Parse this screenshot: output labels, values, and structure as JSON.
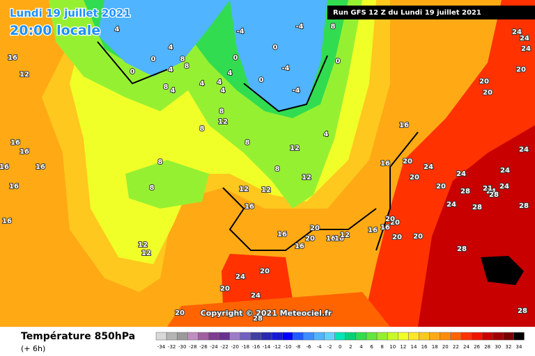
{
  "header": {
    "date": "Lundi 19 juillet 2021",
    "time": "20:00 locale",
    "run": "Run GFS 12 Z du Lundi 19 juillet 2021"
  },
  "copyright": "Copyright © 2021 Meteociel.fr",
  "legend": {
    "title": "Température 850hPa",
    "step": "(+ 6h)",
    "scale": [
      -34,
      -32,
      -30,
      -28,
      -26,
      -24,
      -22,
      -20,
      -18,
      -16,
      -14,
      -12,
      -10,
      -8,
      -6,
      -4,
      -2,
      0,
      2,
      4,
      6,
      8,
      10,
      12,
      14,
      16,
      18,
      20,
      22,
      24,
      26,
      28,
      30,
      32,
      34
    ],
    "colors": [
      "#d8d8d8",
      "#b4b4b4",
      "#9a9a9a",
      "#bf8fbf",
      "#a060a0",
      "#803c90",
      "#6a3090",
      "#9c7cc8",
      "#7060c0",
      "#4040a0",
      "#2828b0",
      "#1818d8",
      "#0000ff",
      "#1e5aff",
      "#3c8cff",
      "#50b4ff",
      "#64d2ff",
      "#00e6b4",
      "#00d278",
      "#32dc50",
      "#64e63c",
      "#96f032",
      "#c8fa28",
      "#f0ff28",
      "#ffe628",
      "#ffc81e",
      "#ffaa14",
      "#ff8c0a",
      "#ff6400",
      "#ff3200",
      "#f01400",
      "#c80000",
      "#a00000",
      "#780000",
      "#000000"
    ]
  },
  "map_labels": [
    16,
    12,
    16,
    16,
    16,
    16,
    16,
    16,
    12,
    12,
    4,
    0,
    0,
    4,
    8,
    4,
    8,
    8,
    4,
    4,
    4,
    4,
    -4,
    0,
    4,
    0,
    0,
    -4,
    -4,
    -4,
    0,
    8,
    8,
    12,
    8,
    8,
    8,
    8,
    12,
    12,
    12,
    8,
    12,
    4,
    16,
    16,
    20,
    24,
    20,
    20,
    24,
    28,
    24,
    28,
    24,
    24,
    24,
    21,
    24,
    28,
    20,
    20,
    20,
    24,
    24,
    24,
    28,
    28,
    28,
    16,
    16,
    16,
    20,
    20,
    16,
    16,
    12,
    16,
    16,
    20,
    20,
    20,
    24,
    20,
    24,
    20,
    28,
    20,
    20
  ]
}
